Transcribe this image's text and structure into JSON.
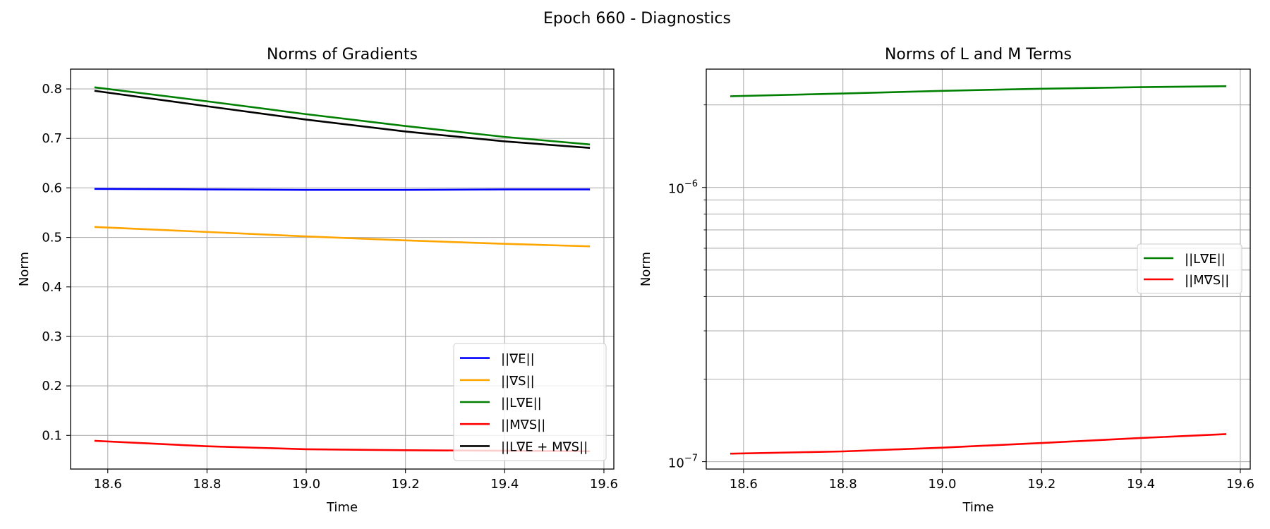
{
  "figure": {
    "suptitle": "Epoch 660 - Diagnostics"
  },
  "chart_data": [
    {
      "type": "line",
      "title": "Norms of Gradients",
      "xlabel": "Time",
      "ylabel": "Norm",
      "xlim": [
        18.525,
        19.62
      ],
      "ylim": [
        0.032,
        0.84
      ],
      "yscale": "linear",
      "xticks": [
        18.6,
        18.8,
        19.0,
        19.2,
        19.4,
        19.6
      ],
      "xtick_labels": [
        "18.6",
        "18.8",
        "19.0",
        "19.2",
        "19.4",
        "19.6"
      ],
      "yticks": [
        0.1,
        0.2,
        0.3,
        0.4,
        0.5,
        0.6,
        0.7,
        0.8
      ],
      "ytick_labels": [
        "0.1",
        "0.2",
        "0.3",
        "0.4",
        "0.5",
        "0.6",
        "0.7",
        "0.8"
      ],
      "grid": true,
      "legend_position": "lower-right",
      "x": [
        18.575,
        18.8,
        19.0,
        19.2,
        19.4,
        19.57
      ],
      "series": [
        {
          "name": "||∇E||",
          "color": "#0000ff",
          "values": [
            0.598,
            0.597,
            0.596,
            0.596,
            0.597,
            0.597
          ]
        },
        {
          "name": "||∇S||",
          "color": "#ffa500",
          "values": [
            0.521,
            0.511,
            0.502,
            0.494,
            0.487,
            0.482
          ]
        },
        {
          "name": "||L∇E||",
          "color": "#008000",
          "values": [
            0.803,
            0.775,
            0.749,
            0.725,
            0.703,
            0.688
          ]
        },
        {
          "name": "||M∇S||",
          "color": "#ff0000",
          "values": [
            0.089,
            0.078,
            0.072,
            0.07,
            0.069,
            0.068
          ]
        },
        {
          "name": "||L∇E + M∇S||",
          "color": "#000000",
          "values": [
            0.796,
            0.765,
            0.738,
            0.714,
            0.694,
            0.681
          ]
        }
      ]
    },
    {
      "type": "line",
      "title": "Norms of L and M Terms",
      "xlabel": "Time",
      "ylabel": "Norm",
      "xlim": [
        18.525,
        19.62
      ],
      "ylim": [
        9.4e-08,
        2.7e-06
      ],
      "yscale": "log",
      "xticks": [
        18.6,
        18.8,
        19.0,
        19.2,
        19.4,
        19.6
      ],
      "xtick_labels": [
        "18.6",
        "18.8",
        "19.0",
        "19.2",
        "19.4",
        "19.6"
      ],
      "ytick_labels": [
        {
          "base": "10",
          "exp": "−6",
          "value": 1e-06
        },
        {
          "base": "10",
          "exp": "−7",
          "value": 1e-07
        }
      ],
      "minor_gridlines": [
        2e-07,
        3e-07,
        4e-07,
        5e-07,
        6e-07,
        7e-07,
        8e-07,
        9e-07,
        2e-06
      ],
      "grid": true,
      "legend_position": "center-right",
      "x": [
        18.575,
        18.8,
        19.0,
        19.2,
        19.4,
        19.57
      ],
      "series": [
        {
          "name": "||L∇E||",
          "color": "#008000",
          "values": [
            2.15e-06,
            2.2e-06,
            2.25e-06,
            2.29e-06,
            2.32e-06,
            2.34e-06
          ]
        },
        {
          "name": "||M∇S||",
          "color": "#ff0000",
          "values": [
            1.07e-07,
            1.09e-07,
            1.125e-07,
            1.17e-07,
            1.22e-07,
            1.26e-07
          ]
        }
      ]
    }
  ]
}
